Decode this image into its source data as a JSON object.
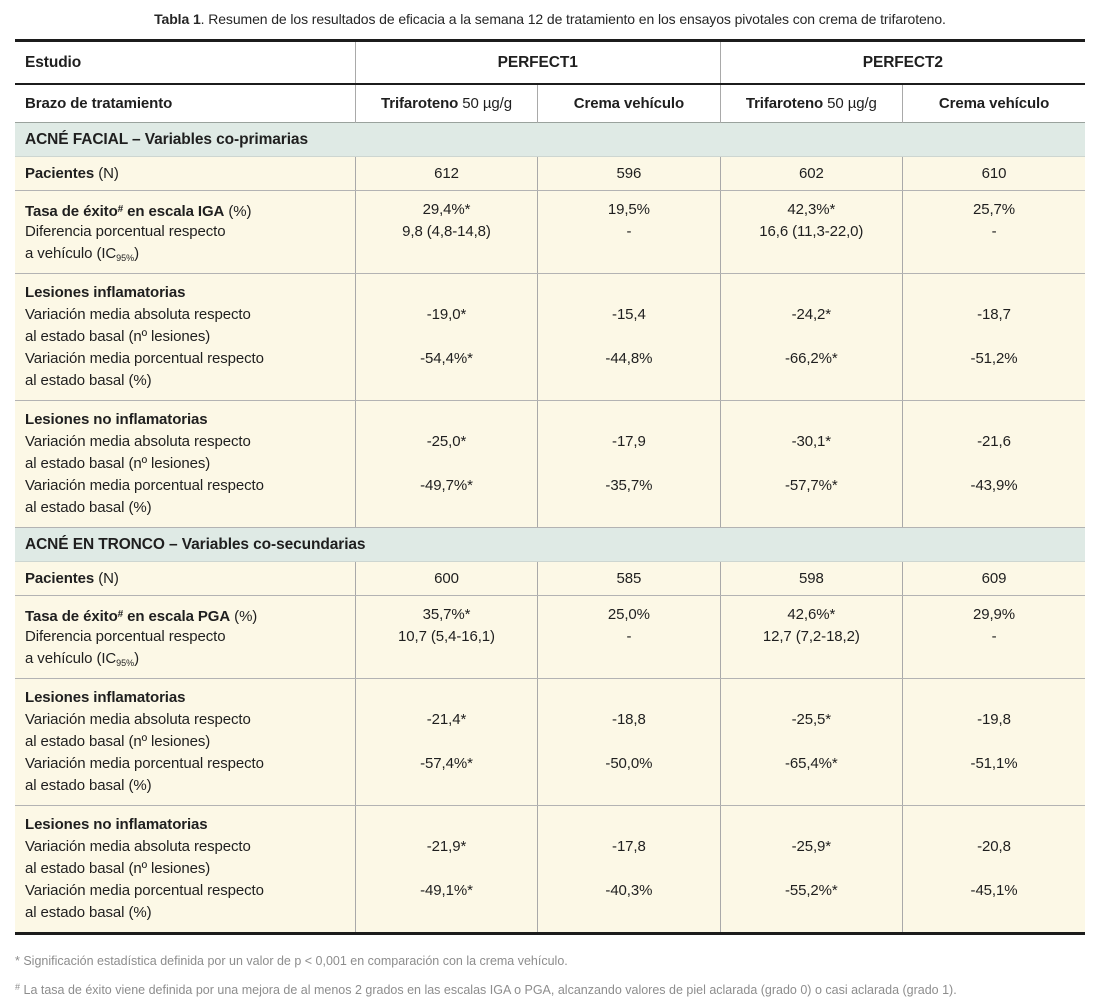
{
  "page": {
    "title_bold": "Tabla 1",
    "title_rest": ". Resumen de los resultados de eficacia a la semana 12 de tratamiento en los ensayos pivotales con crema de trifaroteno."
  },
  "header": {
    "study_label": "Estudio",
    "study1": "PERFECT1",
    "study2": "PERFECT2",
    "arm_label": "Brazo de tratamiento",
    "arm_drug_bold": "Trifaroteno",
    "arm_drug_dose": " 50 µg/g",
    "arm_vehicle": "Crema vehículo"
  },
  "facial": {
    "band": "ACNÉ FACIAL – Variables co-primarias",
    "patients_label_bold": "Pacientes",
    "patients_label_rest": " (N)",
    "patients": [
      "612",
      "596",
      "602",
      "610"
    ],
    "iga": {
      "l1_bold": "Tasa de éxito",
      "l1_sup": "#",
      "l1_bold2": " en escala IGA",
      "l1_rest": " (%)",
      "l2": "Diferencia porcentual respecto",
      "l3_pre": "a vehículo (IC",
      "l3_sub": "95%",
      "l3_post": ")",
      "rate": [
        "29,4%*",
        "19,5%",
        "42,3%*",
        "25,7%"
      ],
      "diff": [
        "9,8 (4,8-14,8)",
        "-",
        "16,6 (11,3-22,0)",
        "-"
      ]
    },
    "infl": {
      "title": "Lesiones inflamatorias",
      "abs1": "Variación media absoluta respecto",
      "abs2": "al estado basal (nº lesiones)",
      "pct1": "Variación media porcentual respecto",
      "pct2": "al estado basal (%)",
      "abs": [
        "-19,0*",
        "-15,4",
        "-24,2*",
        "-18,7"
      ],
      "pct": [
        "-54,4%*",
        "-44,8%",
        "-66,2%*",
        "-51,2%"
      ]
    },
    "noninfl": {
      "title": "Lesiones no inflamatorias",
      "abs1": "Variación media absoluta respecto",
      "abs2": "al estado basal (nº lesiones)",
      "pct1": "Variación media porcentual respecto",
      "pct2": "al estado basal (%)",
      "abs": [
        "-25,0*",
        "-17,9",
        "-30,1*",
        "-21,6"
      ],
      "pct": [
        "-49,7%*",
        "-35,7%",
        "-57,7%*",
        "-43,9%"
      ]
    }
  },
  "tronco": {
    "band": "ACNÉ EN TRONCO – Variables co-secundarias",
    "patients_label_bold": "Pacientes",
    "patients_label_rest": " (N)",
    "patients": [
      "600",
      "585",
      "598",
      "609"
    ],
    "pga": {
      "l1_bold": "Tasa de éxito",
      "l1_sup": "#",
      "l1_bold2": " en escala PGA",
      "l1_rest": " (%)",
      "l2": "Diferencia porcentual respecto",
      "l3_pre": "a vehículo (IC",
      "l3_sub": "95%",
      "l3_post": ")",
      "rate": [
        "35,7%*",
        "25,0%",
        "42,6%*",
        "29,9%"
      ],
      "diff": [
        "10,7 (5,4-16,1)",
        "-",
        "12,7 (7,2-18,2)",
        "-"
      ]
    },
    "infl": {
      "title": "Lesiones inflamatorias",
      "abs1": "Variación media absoluta respecto",
      "abs2": "al estado basal (nº lesiones)",
      "pct1": "Variación media porcentual respecto",
      "pct2": "al estado basal (%)",
      "abs": [
        "-21,4*",
        "-18,8",
        "-25,5*",
        "-19,8"
      ],
      "pct": [
        "-57,4%*",
        "-50,0%",
        "-65,4%*",
        "-51,1%"
      ]
    },
    "noninfl": {
      "title": "Lesiones no inflamatorias",
      "abs1": "Variación media absoluta respecto",
      "abs2": "al estado basal (nº lesiones)",
      "pct1": "Variación media porcentual respecto",
      "pct2": "al estado basal (%)",
      "abs": [
        "-21,9*",
        "-17,8",
        "-25,9*",
        "-20,8"
      ],
      "pct": [
        "-49,1%*",
        "-40,3%",
        "-55,2%*",
        "-45,1%"
      ]
    }
  },
  "footnotes": {
    "f1": "* Significación estadística definida por un valor de p < 0,001 en comparación con la crema vehículo.",
    "f2_sup": "#",
    "f2_text": " La tasa de éxito viene definida por una mejora de al menos 2 grados en las escalas IGA o PGA, alcanzando valores de piel aclarada (grado 0) o casi aclarada (grado 1)."
  },
  "colors": {
    "row_cream": "#FCF8E6",
    "band_teal": "#DFEAE5",
    "grid_gray": "#A9A9A9",
    "border_black": "#1C1C1C",
    "footnote_gray": "#8D8D8D"
  }
}
